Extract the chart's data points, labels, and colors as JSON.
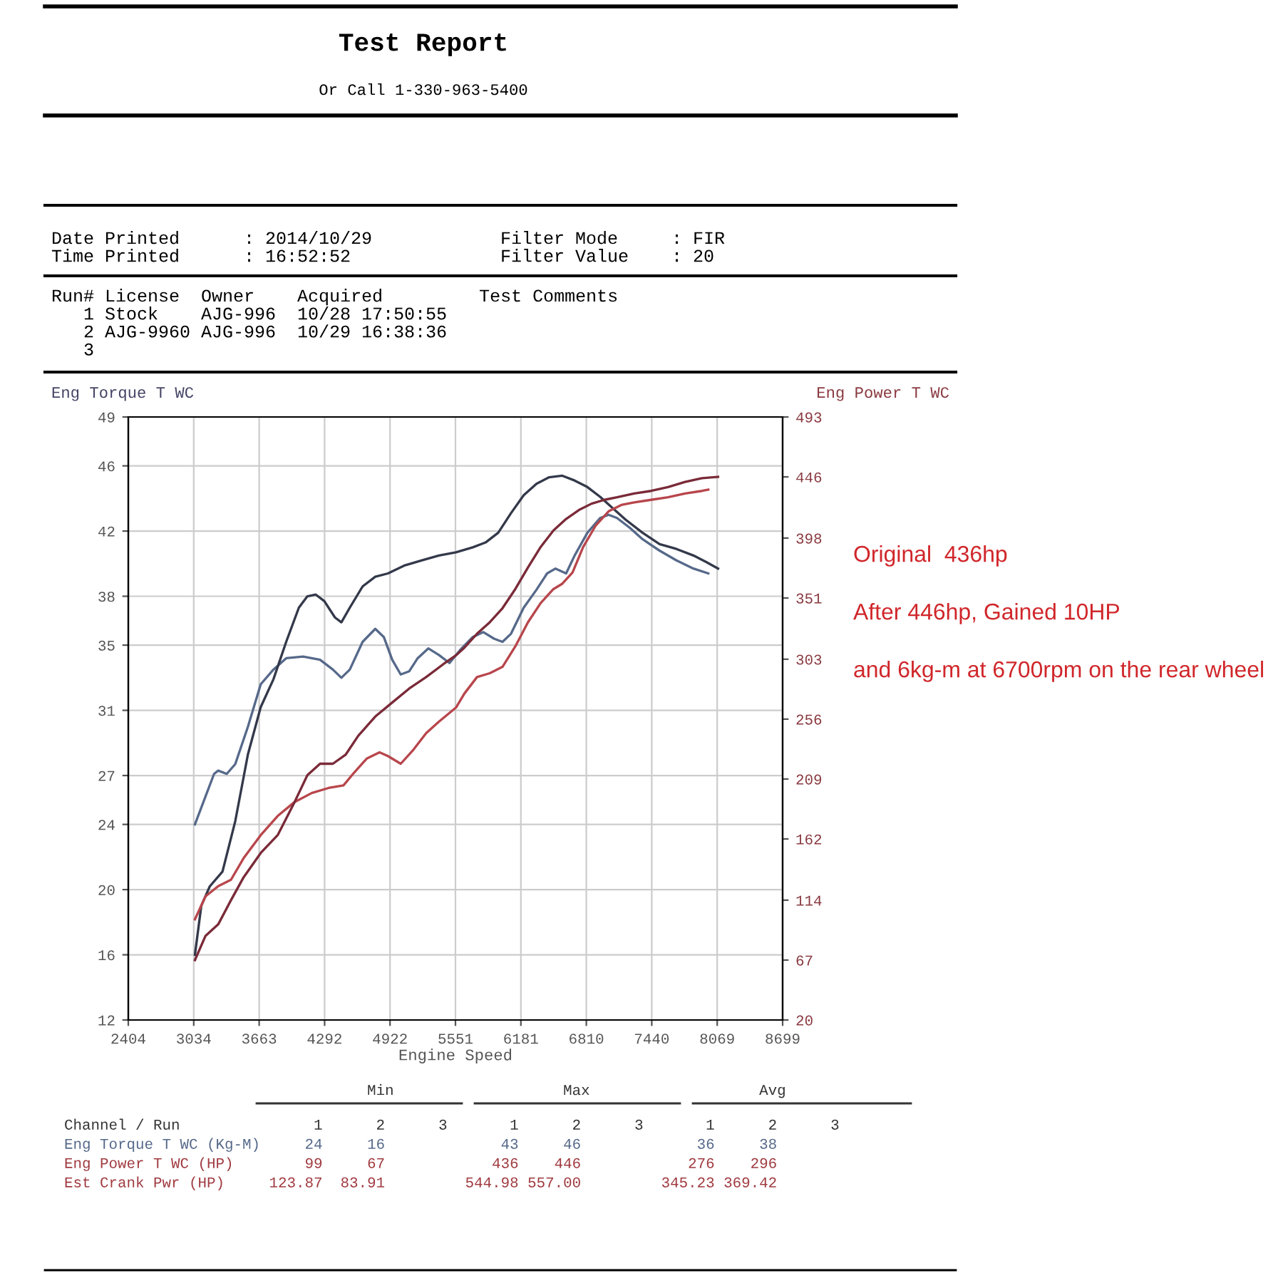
{
  "chart_data": {
    "type": "line",
    "xlabel": "Engine Speed",
    "ylabel": "Eng Torque T WC",
    "y2label": "Eng Power T WC",
    "xlim": [
      2404,
      8699
    ],
    "xticks": [
      2404,
      {
        "value": 3033.5,
        "label": "3034"
      },
      3663,
      {
        "value": 4292.5,
        "label": "4292"
      },
      4922,
      {
        "value": 5551.5,
        "label": "5551"
      },
      6181,
      {
        "value": 6810.5,
        "label": "6810"
      },
      7440,
      {
        "value": 8069.5,
        "label": "8069"
      },
      8699
    ],
    "ylim": [
      12,
      49
    ],
    "yticks": [
      12,
      16,
      20,
      24,
      27,
      31,
      35,
      38,
      42,
      46,
      49
    ],
    "y2lim": [
      20,
      493
    ],
    "y2ticks": [
      20,
      67,
      114,
      162,
      209,
      256,
      303,
      351,
      398,
      446,
      493
    ],
    "grid": true,
    "line_style": "solid",
    "series": [
      {
        "color": "#56698a",
        "x": [
          3045,
          3229,
          3269,
          3351,
          3433,
          3555,
          3678,
          3800,
          3923,
          4086,
          4249,
          4372,
          4454,
          4535,
          4658,
          4780,
          4862,
          4943,
          5025,
          5107,
          5188,
          5290,
          5392,
          5494,
          5596,
          5718,
          5820,
          5922,
          6004,
          6086,
          6208,
          6331,
          6433,
          6514,
          6616,
          6698,
          6821,
          6943,
          7025,
          7106,
          7229,
          7351,
          7515,
          7678,
          7841,
          7984
        ],
        "values": [
          24.0,
          27.1,
          27.3,
          27.1,
          27.7,
          30.0,
          32.6,
          33.5,
          34.2,
          34.3,
          34.1,
          33.5,
          33.0,
          33.5,
          35.2,
          36.0,
          35.5,
          34.1,
          33.2,
          33.4,
          34.2,
          34.8,
          34.4,
          33.9,
          34.7,
          35.5,
          35.8,
          35.4,
          35.2,
          35.7,
          37.3,
          38.4,
          39.4,
          39.7,
          39.4,
          40.5,
          41.9,
          42.8,
          43.0,
          42.8,
          42.2,
          41.5,
          40.8,
          40.2,
          39.7,
          39.4
        ]
      },
      {
        "color": "#33394a",
        "x": [
          3045,
          3106,
          3188,
          3310,
          3433,
          3555,
          3678,
          3800,
          3923,
          4045,
          4127,
          4208,
          4290,
          4392,
          4454,
          4535,
          4658,
          4780,
          4902,
          5066,
          5229,
          5392,
          5556,
          5718,
          5841,
          5963,
          6086,
          6208,
          6331,
          6453,
          6576,
          6698,
          6821,
          6943,
          7065,
          7188,
          7351,
          7515,
          7678,
          7841,
          7964,
          8078
        ],
        "values": [
          16.0,
          19.0,
          20.2,
          21.1,
          24.2,
          28.3,
          31.2,
          32.9,
          35.2,
          37.3,
          38.0,
          38.1,
          37.7,
          36.7,
          36.4,
          37.3,
          38.6,
          39.2,
          39.4,
          39.9,
          40.2,
          40.5,
          40.7,
          41.0,
          41.3,
          41.9,
          43.1,
          44.2,
          44.9,
          45.3,
          45.4,
          45.1,
          44.7,
          44.1,
          43.4,
          42.7,
          41.9,
          41.2,
          40.9,
          40.5,
          40.1,
          39.7
        ]
      },
      {
        "color": "#b8464c",
        "axis": "y2",
        "x": [
          3045,
          3147,
          3269,
          3392,
          3514,
          3678,
          3841,
          4004,
          4168,
          4331,
          4474,
          4576,
          4698,
          4821,
          4902,
          5025,
          5147,
          5270,
          5392,
          5556,
          5637,
          5759,
          5882,
          6004,
          6127,
          6249,
          6371,
          6494,
          6576,
          6678,
          6780,
          6902,
          7025,
          7147,
          7270,
          7433,
          7596,
          7760,
          7923,
          7984
        ],
        "values": [
          99,
          117,
          125,
          130,
          147,
          165,
          180,
          191,
          198,
          202,
          204,
          214,
          225,
          230,
          227,
          221,
          232,
          245,
          254,
          265,
          276,
          289,
          292,
          297,
          313,
          332,
          347,
          358,
          362,
          371,
          391,
          408,
          419,
          424,
          426,
          428,
          430,
          433,
          435,
          436
        ]
      },
      {
        "color": "#7a2a38",
        "axis": "y2",
        "x": [
          3045,
          3147,
          3269,
          3392,
          3514,
          3678,
          3841,
          4004,
          4127,
          4249,
          4372,
          4494,
          4617,
          4780,
          4943,
          5107,
          5270,
          5433,
          5556,
          5637,
          5759,
          5882,
          6004,
          6127,
          6249,
          6371,
          6494,
          6616,
          6739,
          6861,
          6984,
          7106,
          7270,
          7433,
          7596,
          7760,
          7923,
          8078
        ],
        "values": [
          67,
          86,
          95,
          114,
          132,
          151,
          165,
          191,
          212,
          221,
          221,
          228,
          243,
          258,
          269,
          280,
          289,
          299,
          306,
          312,
          323,
          332,
          343,
          358,
          375,
          391,
          404,
          413,
          420,
          425,
          428,
          430,
          433,
          435,
          438,
          442,
          445,
          446
        ]
      }
    ],
    "annotations": [
      "Test Report",
      "Or Call 1-330-963-5400",
      "Date Printed      : 2014/10/29\nTime Printed      : 16:52:52",
      "Filter Mode     : FIR\nFilter Value    : 20",
      "Run# License  Owner    Acquired         Test Comments\n   1 Stock    AJG-996  10/28 17:50:55\n   2 AJG-9960 AJG-996  10/29 16:38:36\n   3",
      "                                  Min                   Max                   Avg",
      "Channel / Run               1      2      3       1      2      3       1      2      3",
      "Eng Torque T WC (Kg-M)     24     16             43     46             36     38",
      "Eng Power T WC (HP)        99     67            436    446            276    296",
      "Est Crank Pwr (HP)     123.87  83.91         544.98 557.00         345.23 369.42",
      "Original  436hp",
      "After 446hp, Gained 10HP",
      "and 6kg-m at 6700rpm on the rear wheel"
    ]
  }
}
